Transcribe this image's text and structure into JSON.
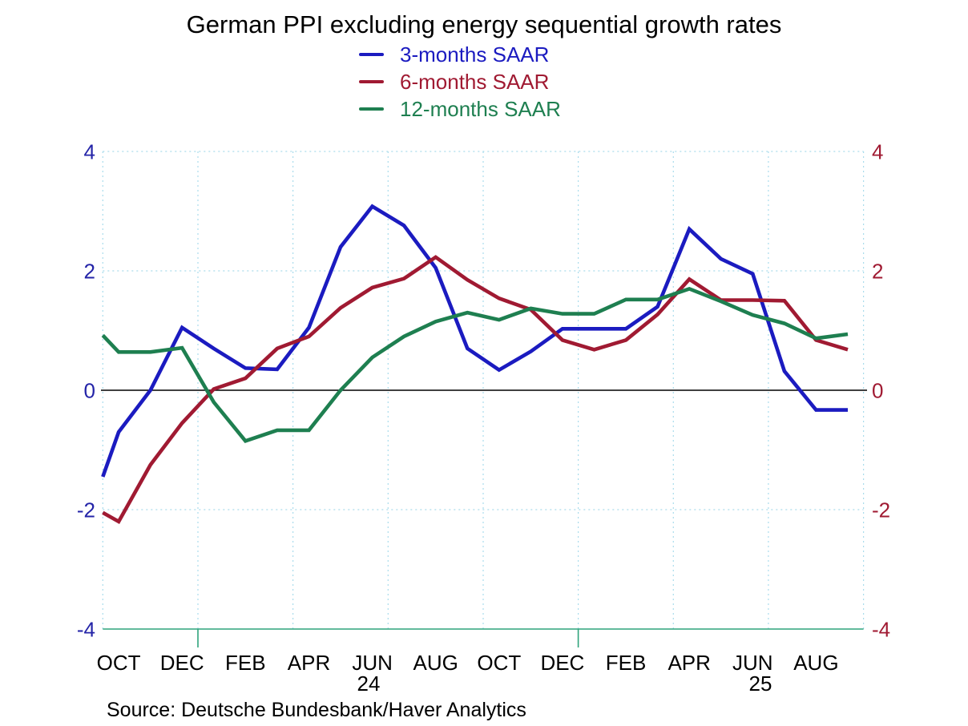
{
  "title": "German PPI excluding energy sequential growth rates",
  "source_note": "Source:  Deutsche Bundesbank/Haver Analytics",
  "legend": {
    "items": [
      {
        "label": "3-months SAAR",
        "color": "#1b1bc0"
      },
      {
        "label": "6-months SAAR",
        "color": "#a01a32"
      },
      {
        "label": "12-months SAAR",
        "color": "#1e7f50"
      }
    ]
  },
  "chart_data": {
    "type": "line",
    "title": "German PPI excluding energy sequential growth rates",
    "xlabel": "",
    "ylabel": "",
    "ylim": [
      -4,
      4
    ],
    "yticks": [
      4,
      2,
      0,
      -2,
      -4
    ],
    "grid": "vertical quarterly dashed + horizontal dashed at ticks, solid black zero line, solid green bottom axis",
    "legend_position": "top-center",
    "x_tick_labels": [
      "OCT",
      "DEC",
      "FEB",
      "APR",
      "JUN",
      "AUG",
      "OCT",
      "DEC",
      "FEB",
      "APR",
      "JUN",
      "AUG"
    ],
    "year_labels": [
      "24",
      "25"
    ],
    "months": [
      "Oct 2023",
      "Nov 2023",
      "Dec 2023",
      "Jan 2024",
      "Feb 2024",
      "Mar 2024",
      "Apr 2024",
      "May 2024",
      "Jun 2024",
      "Jul 2024",
      "Aug 2024",
      "Sep 2024",
      "Oct 2024",
      "Nov 2024",
      "Dec 2024",
      "Jan 2025",
      "Feb 2025",
      "Mar 2025",
      "Apr 2025",
      "May 2025",
      "Jun 2025",
      "Jul 2025",
      "Aug 2025",
      "Sep 2025"
    ],
    "series": [
      {
        "name": "3-months SAAR",
        "color": "#1b1bc0",
        "edge_start_value": -1.45,
        "values": [
          -0.7,
          0.0,
          1.05,
          0.7,
          0.37,
          0.35,
          1.05,
          2.4,
          3.08,
          2.76,
          2.05,
          0.7,
          0.34,
          0.65,
          1.03,
          1.03,
          1.03,
          1.4,
          2.7,
          2.2,
          1.95,
          0.32,
          -0.33,
          -0.33
        ]
      },
      {
        "name": "6-months SAAR",
        "color": "#a01a32",
        "edge_start_value": -2.05,
        "values": [
          -2.2,
          -1.25,
          -0.55,
          0.02,
          0.2,
          0.7,
          0.9,
          1.38,
          1.72,
          1.87,
          2.23,
          1.85,
          1.54,
          1.35,
          0.84,
          0.68,
          0.84,
          1.27,
          1.86,
          1.51,
          1.51,
          1.5,
          0.84,
          0.68
        ]
      },
      {
        "name": "12-months SAAR",
        "color": "#1e7f50",
        "edge_start_value": 0.92,
        "values": [
          0.64,
          0.64,
          0.71,
          -0.2,
          -0.85,
          -0.67,
          -0.67,
          0.0,
          0.55,
          0.9,
          1.15,
          1.3,
          1.18,
          1.37,
          1.28,
          1.28,
          1.52,
          1.52,
          1.7,
          1.49,
          1.26,
          1.12,
          0.87,
          0.94
        ]
      }
    ],
    "axis_label_colors": {
      "left": "#2424a8",
      "right": "#a01a32",
      "bottom": "#000000"
    },
    "gridline_color": "#aadcec",
    "zero_line_color": "#000000",
    "bottom_axis_color": "#2ea37c"
  }
}
